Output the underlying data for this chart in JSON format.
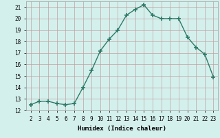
{
  "x": [
    2,
    3,
    4,
    5,
    6,
    7,
    8,
    9,
    10,
    11,
    12,
    13,
    14,
    15,
    16,
    17,
    18,
    19,
    20,
    21,
    22,
    23
  ],
  "y": [
    12.5,
    12.8,
    12.8,
    12.6,
    12.5,
    12.6,
    14.0,
    15.5,
    17.2,
    18.2,
    19.0,
    20.3,
    20.8,
    21.2,
    20.3,
    20.0,
    20.0,
    20.0,
    18.4,
    17.5,
    16.9,
    14.9
  ],
  "line_color": "#2d7a68",
  "marker": "+",
  "marker_size": 4,
  "marker_linewidth": 1.2,
  "bg_color": "#d4f0ec",
  "grid_color": "#c0a0a0",
  "xlabel": "Humidex (Indice chaleur)",
  "xlim": [
    1.5,
    23.5
  ],
  "ylim": [
    12,
    21.5
  ],
  "yticks": [
    12,
    13,
    14,
    15,
    16,
    17,
    18,
    19,
    20,
    21
  ],
  "xticks": [
    2,
    3,
    4,
    5,
    6,
    7,
    8,
    9,
    10,
    11,
    12,
    13,
    14,
    15,
    16,
    17,
    18,
    19,
    20,
    21,
    22,
    23
  ],
  "xlabel_fontsize": 6.5,
  "tick_fontsize": 5.5,
  "linewidth": 1.0
}
